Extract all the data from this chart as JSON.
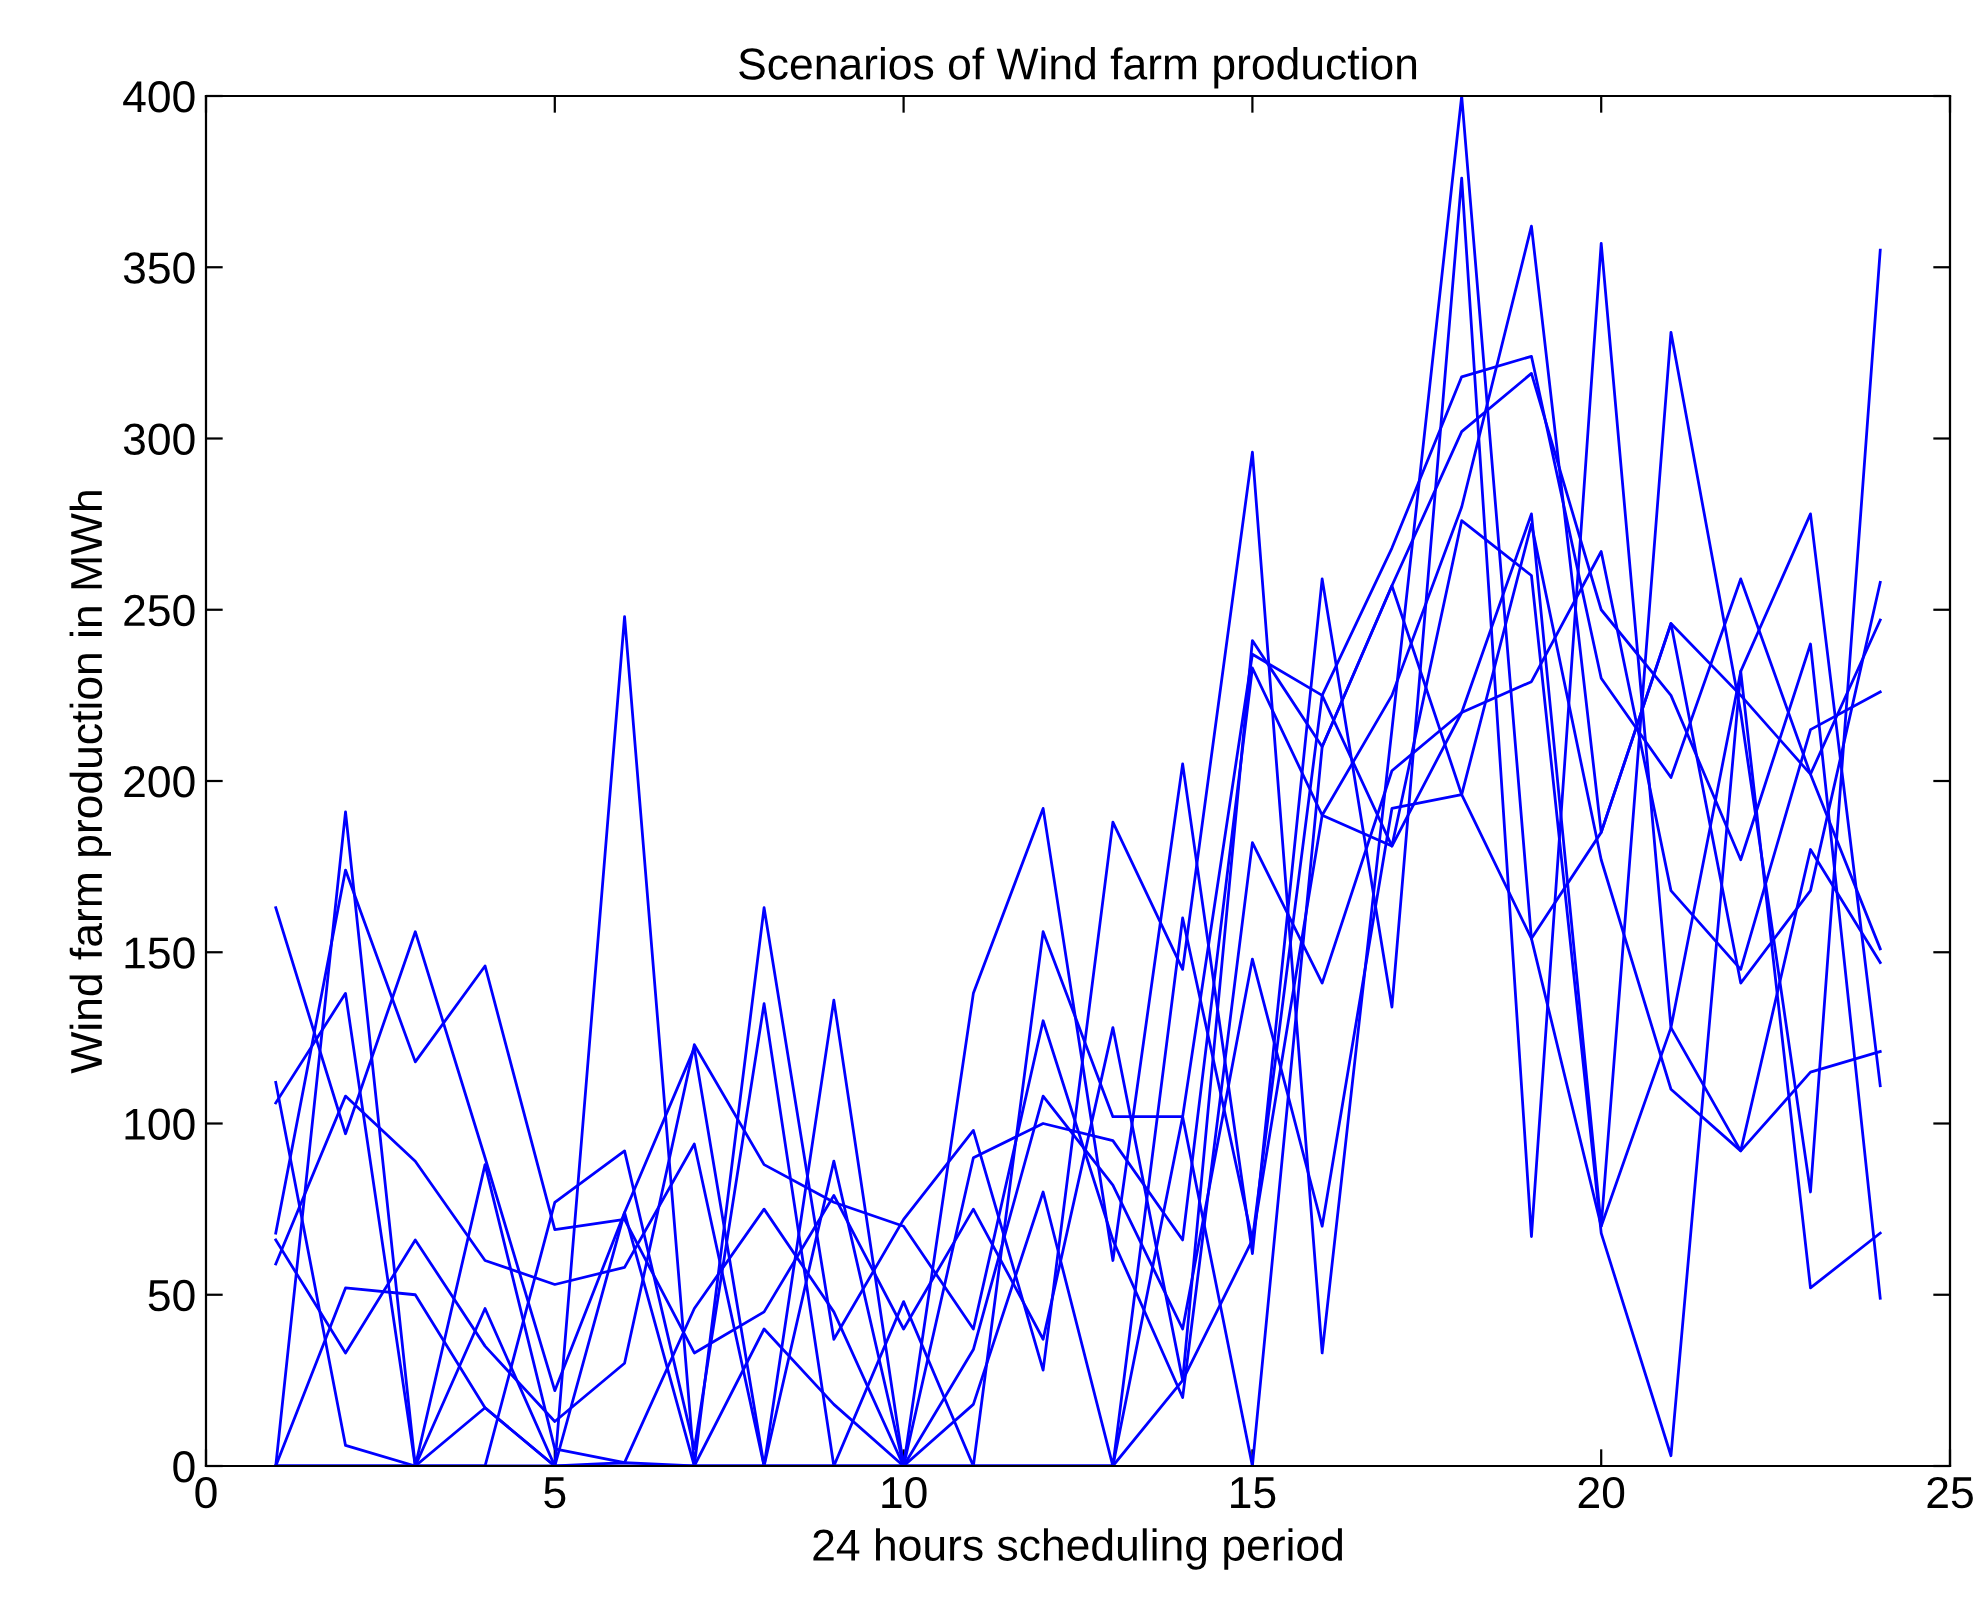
{
  "chart_data": {
    "type": "line",
    "title": "Scenarios of Wind farm production",
    "xlabel": "24 hours scheduling period",
    "ylabel": "Wind farm production in MWh",
    "x": [
      1,
      2,
      3,
      4,
      5,
      6,
      7,
      8,
      9,
      10,
      11,
      12,
      13,
      14,
      15,
      16,
      17,
      18,
      19,
      20,
      21,
      22,
      23,
      24
    ],
    "xlim": [
      0,
      25
    ],
    "xticks": [
      0,
      5,
      10,
      15,
      20,
      25
    ],
    "ylim": [
      0,
      400
    ],
    "yticks": [
      0,
      50,
      100,
      150,
      200,
      250,
      300,
      350,
      400
    ],
    "marker": "none",
    "line_style": "solid",
    "series": [
      {
        "color": "#0000ff",
        "values": [
          163,
          97,
          156,
          90,
          22,
          74,
          122,
          0,
          136,
          0,
          138,
          192,
          60,
          205,
          62,
          259,
          134,
          376,
          67,
          357,
          128,
          232,
          278,
          111
        ]
      },
      {
        "color": "#0000ff",
        "values": [
          112,
          6,
          0,
          46,
          0,
          248,
          0,
          163,
          37,
          72,
          98,
          28,
          188,
          145,
          296,
          33,
          215,
          400,
          154,
          70,
          331,
          220,
          80,
          355
        ]
      },
      {
        "color": "#0000ff",
        "values": [
          106,
          138,
          0,
          0,
          77,
          92,
          5,
          135,
          0,
          48,
          0,
          156,
          102,
          102,
          237,
          225,
          268,
          318,
          324,
          230,
          201,
          259,
          202,
          151
        ]
      },
      {
        "color": "#0000ff",
        "values": [
          68,
          174,
          118,
          146,
          69,
          72,
          33,
          45,
          79,
          40,
          75,
          37,
          128,
          25,
          241,
          210,
          257,
          302,
          319,
          250,
          225,
          177,
          240,
          49
        ]
      },
      {
        "color": "#0000ff",
        "values": [
          59,
          108,
          89,
          60,
          53,
          58,
          94,
          0,
          89,
          0,
          90,
          100,
          95,
          66,
          233,
          190,
          225,
          280,
          362,
          185,
          246,
          141,
          168,
          258
        ]
      },
      {
        "color": "#0000ff",
        "values": [
          66,
          33,
          66,
          35,
          13,
          30,
          123,
          88,
          77,
          70,
          40,
          130,
          66,
          20,
          182,
          141,
          203,
          220,
          229,
          267,
          168,
          145,
          215,
          226
        ]
      },
      {
        "color": "#0000ff",
        "values": [
          0,
          191,
          0,
          88,
          5,
          1,
          46,
          75,
          45,
          0,
          34,
          108,
          82,
          40,
          148,
          70,
          192,
          196,
          275,
          177,
          110,
          92,
          115,
          121
        ]
      },
      {
        "color": "#0000ff",
        "values": [
          0,
          52,
          50,
          17,
          0,
          74,
          0,
          40,
          18,
          0,
          18,
          80,
          0,
          160,
          66,
          225,
          181,
          276,
          260,
          68,
          3,
          232,
          52,
          68
        ]
      },
      {
        "color": "#0000ff",
        "values": [
          0,
          0,
          0,
          17,
          0,
          1,
          0,
          0,
          0,
          0,
          0,
          0,
          0,
          25,
          66,
          190,
          181,
          220,
          278,
          70,
          128,
          92,
          180,
          147
        ]
      },
      {
        "color": "#0000ff",
        "values": [
          0,
          0,
          0,
          0,
          0,
          0,
          0,
          0,
          0,
          0,
          0,
          0,
          0,
          102,
          0,
          210,
          257,
          196,
          154,
          185,
          246,
          225,
          202,
          247
        ]
      }
    ]
  }
}
